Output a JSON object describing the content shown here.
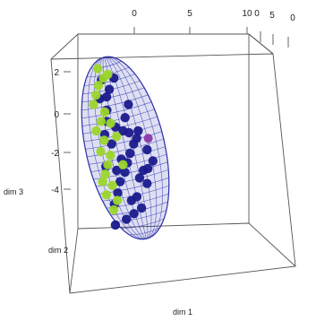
{
  "chart_data": {
    "type": "scatter",
    "dimensions": 3,
    "title": "",
    "box": true,
    "grid": false,
    "legend": "none",
    "axes": {
      "dim1": {
        "label": "dim 1"
      },
      "dim2": {
        "label": "dim 2"
      },
      "dim3": {
        "label": "dim 3",
        "ticks": [
          "2",
          "0",
          "-2",
          "-4"
        ]
      },
      "top_ticks": [
        "0",
        "5",
        "10",
        "0",
        "5",
        "0"
      ]
    },
    "ellipsoid": {
      "color": "#2b2fa6",
      "wireframe": true
    },
    "series": [
      {
        "color": "#1a1a8c",
        "points": [
          [
            -0.2,
            -4.2
          ],
          [
            0.1,
            -3.6
          ],
          [
            -0.6,
            -4.8
          ],
          [
            0.6,
            -3.1
          ],
          [
            0.9,
            -2.6
          ],
          [
            1.2,
            -2.1
          ],
          [
            1.6,
            -1.6
          ],
          [
            1.9,
            -1.3
          ],
          [
            2.1,
            -0.9
          ],
          [
            0.4,
            -2.4
          ],
          [
            -0.3,
            -1.6
          ],
          [
            -0.8,
            -1.1
          ],
          [
            0.2,
            -0.7
          ],
          [
            -0.4,
            0.2
          ],
          [
            -0.9,
            0.8
          ],
          [
            0.0,
            1.3
          ],
          [
            -0.6,
            1.8
          ],
          [
            1.1,
            -0.2
          ],
          [
            1.4,
            -4.4
          ],
          [
            2.4,
            -3.7
          ],
          [
            3.1,
            -2.5
          ],
          [
            2.7,
            -1.9
          ],
          [
            1.0,
            -5.3
          ],
          [
            0.3,
            -5.6
          ],
          [
            -0.7,
            -5.9
          ],
          [
            1.7,
            -5.0
          ],
          [
            2.2,
            -3.0
          ],
          [
            -0.1,
            -3.0
          ],
          [
            0.8,
            -0.9
          ],
          [
            -0.5,
            -0.4
          ],
          [
            1.5,
            0.5
          ],
          [
            -1.0,
            -2.8
          ],
          [
            0.5,
            1.9
          ],
          [
            1.8,
            -3.4
          ],
          [
            -0.3,
            0.9
          ],
          [
            2.6,
            -2.9
          ],
          [
            0.9,
            -4.6
          ],
          [
            1.3,
            -1.0
          ]
        ]
      },
      {
        "color": "#9bd62a",
        "points": [
          [
            -0.8,
            2.4
          ],
          [
            -0.4,
            1.9
          ],
          [
            -1.2,
            1.0
          ],
          [
            -0.6,
            0.1
          ],
          [
            -1.0,
            -0.4
          ],
          [
            -1.5,
            -0.9
          ],
          [
            -0.9,
            -1.4
          ],
          [
            -1.3,
            -2.0
          ],
          [
            -0.5,
            -2.2
          ],
          [
            -0.8,
            -2.7
          ],
          [
            -1.1,
            -3.2
          ],
          [
            -0.6,
            -3.8
          ],
          [
            -1.2,
            -4.3
          ],
          [
            -0.3,
            -4.6
          ],
          [
            -0.7,
            -5.1
          ],
          [
            0.2,
            -1.2
          ],
          [
            0.5,
            -2.7
          ],
          [
            -1.5,
            0.5
          ],
          [
            -0.2,
            -0.5
          ],
          [
            0.0,
            2.1
          ],
          [
            -1.4,
            -3.6
          ],
          [
            -0.9,
            1.5
          ]
        ]
      },
      {
        "color": "#8a39a8",
        "points": [
          [
            2.9,
            -1.3
          ]
        ]
      }
    ]
  }
}
